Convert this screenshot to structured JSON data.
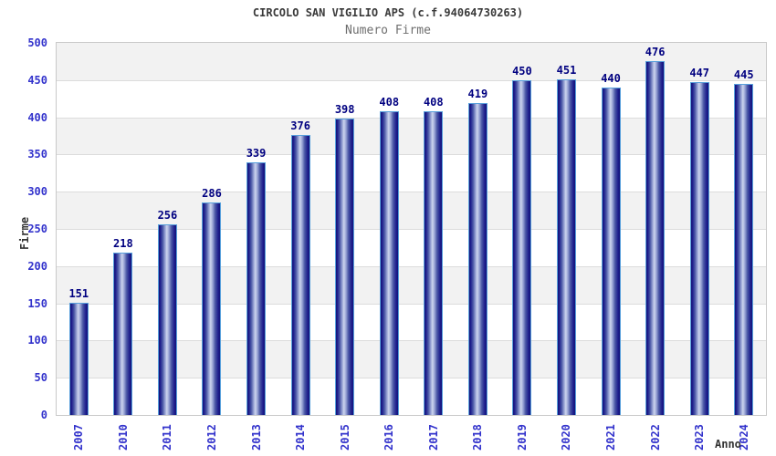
{
  "chart_data": {
    "type": "bar",
    "title": "CIRCOLO SAN VIGILIO APS (c.f.94064730263)",
    "subtitle": "Numero Firme",
    "xlabel": "Anno",
    "ylabel": "Firme",
    "categories": [
      "2007",
      "2010",
      "2011",
      "2012",
      "2013",
      "2014",
      "2015",
      "2016",
      "2017",
      "2018",
      "2019",
      "2020",
      "2021",
      "2022",
      "2023",
      "2024"
    ],
    "values": [
      151,
      218,
      256,
      286,
      339,
      376,
      398,
      408,
      408,
      419,
      450,
      451,
      440,
      476,
      447,
      445
    ],
    "ylim": [
      0,
      500
    ],
    "ytick_step": 50,
    "grid": "horizontal alternating bands with gridlines",
    "legend_position": "none",
    "colors": {
      "tick_label": "#3333cc",
      "value_label": "#000080",
      "bar_border": "#58a0dc",
      "bar_edge_dark": "#141478",
      "bar_mid": "#98a3d4",
      "bar_highlight": "#ccd4ee",
      "band_gray": "#f2f2f2",
      "band_white": "#ffffff",
      "grid_line": "#dcdcdc",
      "plot_border": "#c9c9c9",
      "title_color": "#3a3a3a",
      "subtitle_color": "#6e6e6e",
      "axis_title_color": "#333333"
    }
  }
}
